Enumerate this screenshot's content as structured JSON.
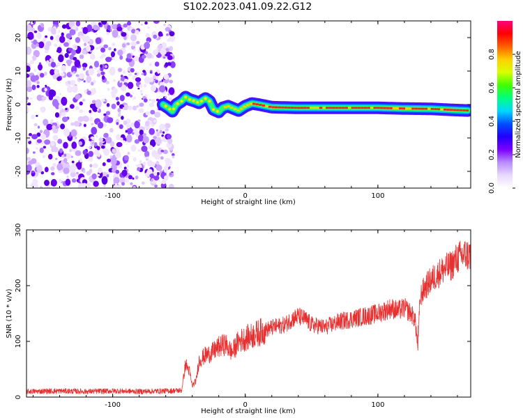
{
  "title": "S102.2023.041.09.22.G12",
  "chart_data": [
    {
      "type": "heatmap",
      "xlabel": "Height of straight line (km)",
      "ylabel": "Frequency (Hz)",
      "xlim": [
        -165,
        170
      ],
      "ylim": [
        -25,
        25
      ],
      "xticks": [
        -100,
        0,
        100
      ],
      "yticks": [
        -20,
        -10,
        0,
        10,
        20
      ],
      "colorbar": {
        "label": "Normalized spectral amplitude",
        "range": [
          0,
          1
        ],
        "ticks": [
          "0.0",
          "0.2",
          "0.4",
          "0.6",
          "0.8"
        ],
        "colors": [
          "#ffffff",
          "#e8d8ff",
          "#b98cff",
          "#7a00ff",
          "#2000ff",
          "#0050ff",
          "#00d8ff",
          "#00ff80",
          "#40ff00",
          "#d8ff00",
          "#ffd000",
          "#ff6000",
          "#ff0000",
          "#ff0080"
        ]
      },
      "ridge": {
        "x": [
          -62,
          -58,
          -55,
          -52,
          -48,
          -45,
          -42,
          -38,
          -35,
          -30,
          -27,
          -24,
          -20,
          -17,
          -13,
          -10,
          -5,
          0,
          5,
          10,
          20,
          40,
          60,
          80,
          100,
          120,
          140,
          155,
          168
        ],
        "y": [
          0,
          -1,
          -2,
          0,
          1,
          2.2,
          1.5,
          1,
          0.5,
          1.8,
          1,
          -1.5,
          -2.2,
          -1,
          -0.5,
          -1,
          -1.8,
          -0.5,
          0.3,
          0,
          -0.8,
          -1,
          -1,
          -1,
          -1,
          -1.2,
          -1.3,
          -1.6,
          -1.8
        ]
      },
      "noise_region": {
        "x": [
          -165,
          -62
        ],
        "y": [
          -25,
          25
        ]
      }
    },
    {
      "type": "line",
      "xlabel": "Height of straight line (km)",
      "ylabel": "SNR (10 * v/v)",
      "xlim": [
        -165,
        170
      ],
      "ylim": [
        0,
        300
      ],
      "xticks": [
        -100,
        0,
        100
      ],
      "yticks": [
        0,
        100,
        200,
        300
      ],
      "color": "#e83030",
      "x": [
        -165,
        -140,
        -120,
        -100,
        -80,
        -60,
        -48,
        -45,
        -42,
        -40,
        -37,
        -35,
        -30,
        -25,
        -20,
        -15,
        -10,
        -5,
        0,
        10,
        20,
        30,
        35,
        40,
        45,
        50,
        60,
        70,
        80,
        90,
        100,
        110,
        115,
        120,
        125,
        128,
        130,
        132,
        135,
        140,
        145,
        150,
        155,
        160,
        165,
        170
      ],
      "y": [
        10,
        11,
        10,
        11,
        10,
        11,
        12,
        60,
        45,
        20,
        30,
        65,
        75,
        80,
        90,
        95,
        80,
        100,
        105,
        115,
        125,
        130,
        140,
        145,
        140,
        130,
        125,
        135,
        140,
        145,
        150,
        160,
        155,
        160,
        150,
        140,
        90,
        180,
        195,
        210,
        220,
        230,
        235,
        250,
        255,
        255
      ]
    }
  ]
}
